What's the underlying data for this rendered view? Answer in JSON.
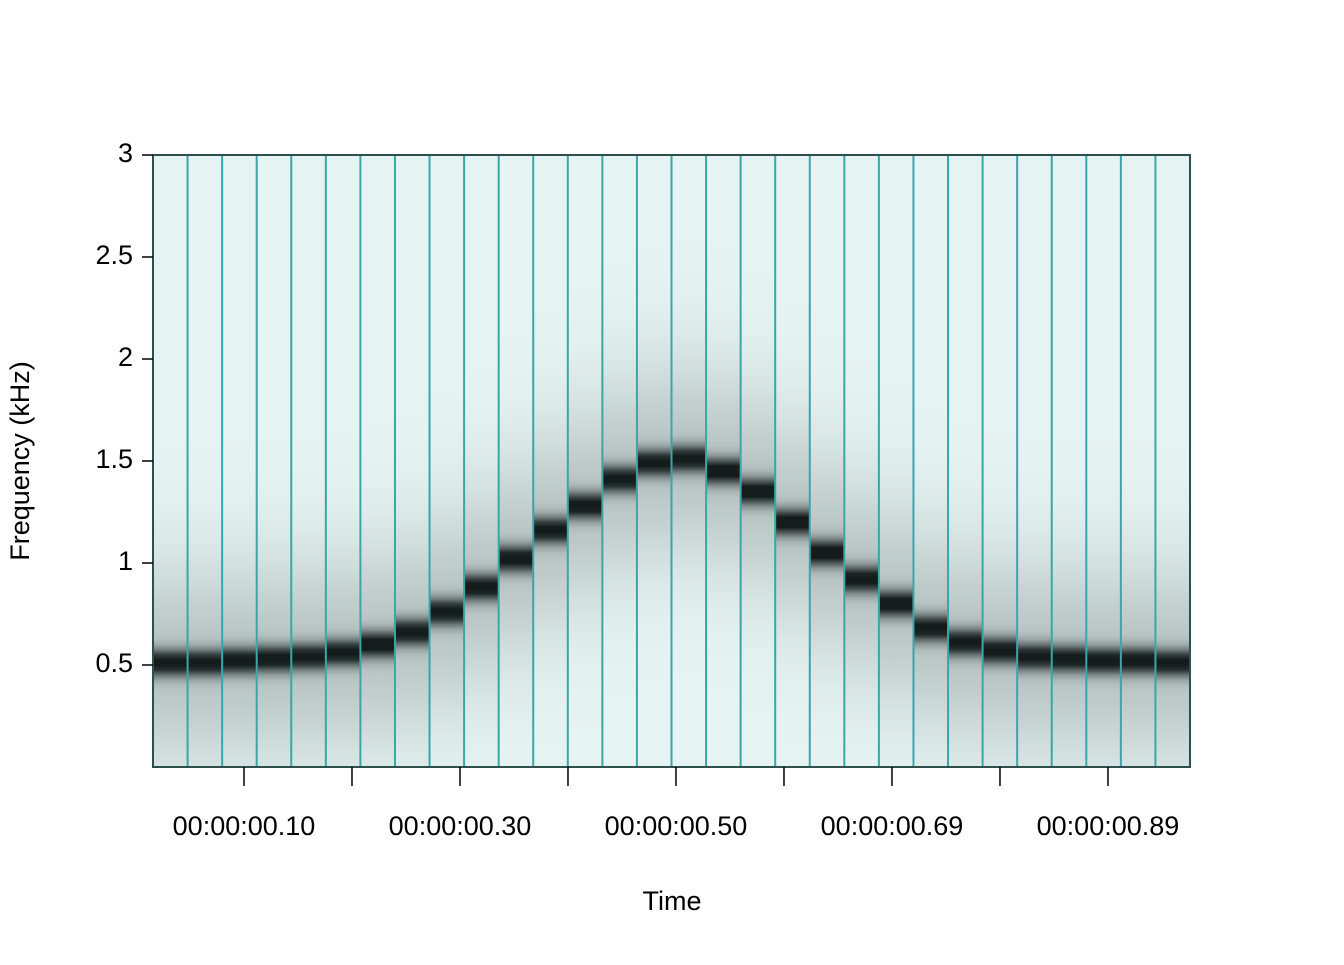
{
  "chart_data": {
    "type": "spectrogram",
    "x_label": "Time",
    "y_label": "Frequency (kHz)",
    "x": [
      0.0326,
      0.0642,
      0.0958,
      0.1274,
      0.159,
      0.1906,
      0.2222,
      0.2538,
      0.2854,
      0.317,
      0.3486,
      0.3802,
      0.4118,
      0.4434,
      0.475,
      0.5066,
      0.5382,
      0.5698,
      0.6014,
      0.633,
      0.6646,
      0.6962,
      0.7278,
      0.7594,
      0.791,
      0.8226,
      0.8542,
      0.8858,
      0.9174,
      0.949
    ],
    "values": [
      0.51,
      0.51,
      0.52,
      0.53,
      0.54,
      0.56,
      0.6,
      0.66,
      0.76,
      0.88,
      1.02,
      1.16,
      1.28,
      1.41,
      1.49,
      1.51,
      1.45,
      1.35,
      1.2,
      1.05,
      0.92,
      0.8,
      0.68,
      0.61,
      0.57,
      0.54,
      0.53,
      0.52,
      0.52,
      0.51
    ],
    "xlim": [
      0.0168,
      0.965
    ],
    "xticks": [
      {
        "value": 0.1,
        "label": "00:00:00.10"
      },
      {
        "value": 0.19875,
        "label": null
      },
      {
        "value": 0.2975,
        "label": "00:00:00.30"
      },
      {
        "value": 0.39625,
        "label": null
      },
      {
        "value": 0.495,
        "label": "00:00:00.50"
      },
      {
        "value": 0.59375,
        "label": null
      },
      {
        "value": 0.6925,
        "label": "00:00:00.69"
      },
      {
        "value": 0.79125,
        "label": null
      },
      {
        "value": 0.89,
        "label": "00:00:00.89"
      }
    ],
    "ylim": [
      0,
      3
    ],
    "yticks": [
      0.5,
      1,
      1.5,
      2,
      2.5,
      3
    ],
    "background_color": "#e6f3f3",
    "peak_color": "#141c1c",
    "frame_line_color": "#3aa6a6",
    "frame_border_color": "#2f4f4f"
  }
}
